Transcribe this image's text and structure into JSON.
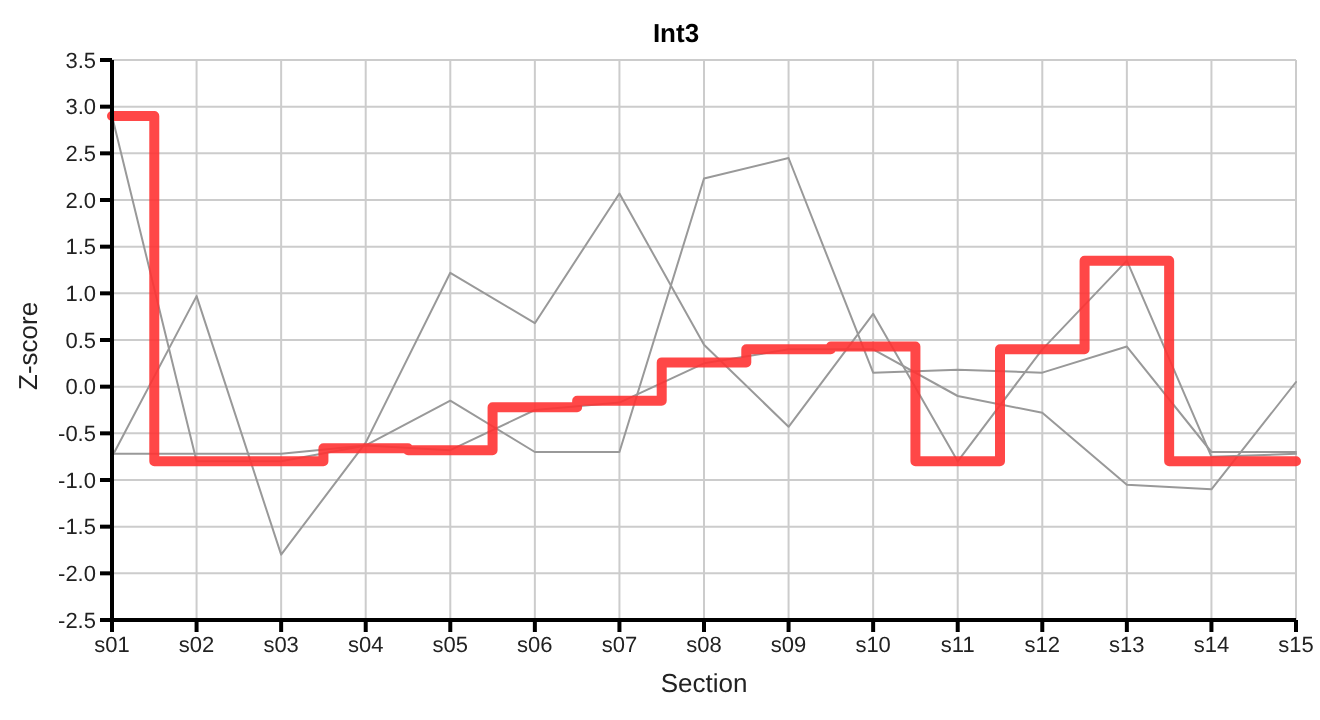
{
  "chart_data": {
    "type": "line",
    "title": "Int3",
    "xlabel": "Section",
    "ylabel": "Z-score",
    "categories": [
      "s01",
      "s02",
      "s03",
      "s04",
      "s05",
      "s06",
      "s07",
      "s08",
      "s09",
      "s10",
      "s11",
      "s12",
      "s13",
      "s14",
      "s15"
    ],
    "series": [
      {
        "type": "line",
        "color": "#999999",
        "values": [
          2.9,
          -0.8,
          -0.8,
          -0.63,
          -0.68,
          -0.25,
          -0.17,
          0.25,
          0.4,
          0.4,
          -0.1,
          -0.28,
          -1.05,
          -1.1,
          0.05
        ]
      },
      {
        "type": "line",
        "color": "#999999",
        "values": [
          -0.75,
          0.97,
          -1.8,
          -0.6,
          1.22,
          0.68,
          2.07,
          0.45,
          -0.43,
          0.78,
          -0.8,
          0.4,
          1.35,
          -0.75,
          -0.72
        ]
      },
      {
        "type": "line",
        "color": "#999999",
        "values": [
          -0.72,
          -0.72,
          -0.72,
          -0.63,
          -0.15,
          -0.7,
          -0.7,
          2.23,
          2.45,
          0.15,
          0.18,
          0.15,
          0.43,
          -0.7,
          -0.7
        ]
      },
      {
        "type": "step",
        "color": "#ff3333",
        "values": [
          2.9,
          -0.8,
          -0.8,
          -0.66,
          -0.68,
          -0.22,
          -0.15,
          0.26,
          0.4,
          0.43,
          -0.8,
          0.4,
          1.35,
          -0.8,
          -0.8
        ]
      }
    ],
    "ylim": [
      -2.5,
      3.5
    ],
    "yticks": [
      -2.5,
      {
        "value": -2,
        "label": "-2.0"
      },
      -1.5,
      {
        "value": -1,
        "label": "-1.0"
      },
      -0.5,
      {
        "value": 0,
        "label": "0.0"
      },
      0.5,
      {
        "value": 1,
        "label": "1.0"
      },
      1.5,
      {
        "value": 2,
        "label": "2.0"
      },
      2.5,
      {
        "value": 3,
        "label": "3.0"
      },
      3.5
    ],
    "grid": true,
    "marker": "none",
    "line_style": "solid",
    "legend": false
  }
}
